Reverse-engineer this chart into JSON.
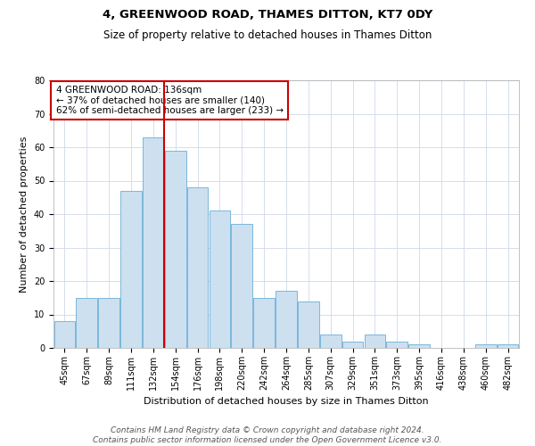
{
  "title": "4, GREENWOOD ROAD, THAMES DITTON, KT7 0DY",
  "subtitle": "Size of property relative to detached houses in Thames Ditton",
  "xlabel": "Distribution of detached houses by size in Thames Ditton",
  "ylabel": "Number of detached properties",
  "categories": [
    "45sqm",
    "67sqm",
    "89sqm",
    "111sqm",
    "132sqm",
    "154sqm",
    "176sqm",
    "198sqm",
    "220sqm",
    "242sqm",
    "264sqm",
    "285sqm",
    "307sqm",
    "329sqm",
    "351sqm",
    "373sqm",
    "395sqm",
    "416sqm",
    "438sqm",
    "460sqm",
    "482sqm"
  ],
  "values": [
    8,
    15,
    15,
    47,
    63,
    59,
    48,
    41,
    37,
    15,
    17,
    14,
    4,
    2,
    4,
    2,
    1,
    0,
    0,
    1,
    1
  ],
  "bar_color": "#cce0f0",
  "bar_edge_color": "#6aaed6",
  "vline_x_index": 4,
  "vline_color": "#cc0000",
  "ylim": [
    0,
    80
  ],
  "yticks": [
    0,
    10,
    20,
    30,
    40,
    50,
    60,
    70,
    80
  ],
  "annotation_title": "4 GREENWOOD ROAD: 136sqm",
  "annotation_line1": "← 37% of detached houses are smaller (140)",
  "annotation_line2": "62% of semi-detached houses are larger (233) →",
  "annotation_box_color": "#ffffff",
  "annotation_box_edge": "#cc0000",
  "footer1": "Contains HM Land Registry data © Crown copyright and database right 2024.",
  "footer2": "Contains public sector information licensed under the Open Government Licence v3.0.",
  "title_fontsize": 9.5,
  "subtitle_fontsize": 8.5,
  "xlabel_fontsize": 8,
  "ylabel_fontsize": 8,
  "tick_fontsize": 7,
  "annotation_fontsize": 7.5,
  "footer_fontsize": 6.5
}
